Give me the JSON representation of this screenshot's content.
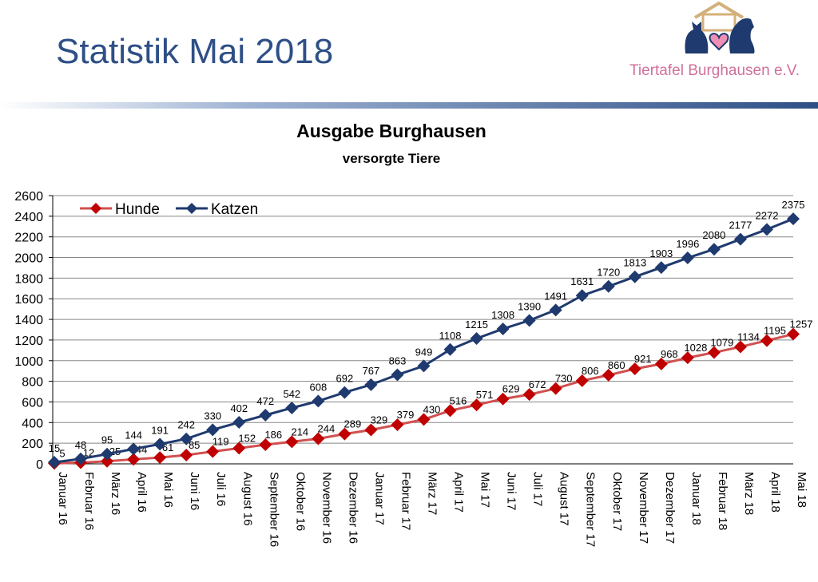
{
  "slide": {
    "title": "Statistik Mai 2018",
    "logo_text": "Tiertafel Burghausen e.V."
  },
  "colors": {
    "hunde": "#c00000",
    "hunde_line": "#d05050",
    "katzen": "#1f3a6e",
    "title": "#2e4f86"
  },
  "chart_data": {
    "type": "line",
    "title": "Ausgabe Burghausen",
    "subtitle": "versorgte Tiere",
    "xlabel": "",
    "ylabel": "",
    "ylim": [
      0,
      2600
    ],
    "yticks": [
      0,
      200,
      400,
      600,
      800,
      1000,
      1200,
      1400,
      1600,
      1800,
      2000,
      2200,
      2400,
      2600
    ],
    "grid": true,
    "legend": "top-left",
    "categories": [
      "Januar 16",
      "Februar 16",
      "März 16",
      "April 16",
      "Mai 16",
      "Juni 16",
      "Juli 16",
      "August 16",
      "September 16",
      "Oktober 16",
      "November 16",
      "Dezember 16",
      "Januar 17",
      "Februar 17",
      "März 17",
      "April 17",
      "Mai 17",
      "Juni 17",
      "Juli 17",
      "August 17",
      "September 17",
      "Oktober 17",
      "November 17",
      "Dezember 17",
      "Januar 18",
      "Februar 18",
      "März 18",
      "April 18",
      "Mai 18"
    ],
    "series": [
      {
        "name": "Hunde",
        "values": [
          5,
          12,
          25,
          44,
          61,
          85,
          119,
          152,
          186,
          214,
          244,
          289,
          329,
          379,
          430,
          516,
          571,
          629,
          672,
          730,
          806,
          860,
          921,
          968,
          1028,
          1079,
          1134,
          1195,
          1257
        ]
      },
      {
        "name": "Katzen",
        "values": [
          15,
          48,
          95,
          144,
          191,
          242,
          330,
          402,
          472,
          542,
          608,
          692,
          767,
          863,
          949,
          1108,
          1215,
          1308,
          1390,
          1491,
          1631,
          1720,
          1813,
          1903,
          1996,
          2080,
          2177,
          2272,
          2375
        ]
      }
    ]
  }
}
